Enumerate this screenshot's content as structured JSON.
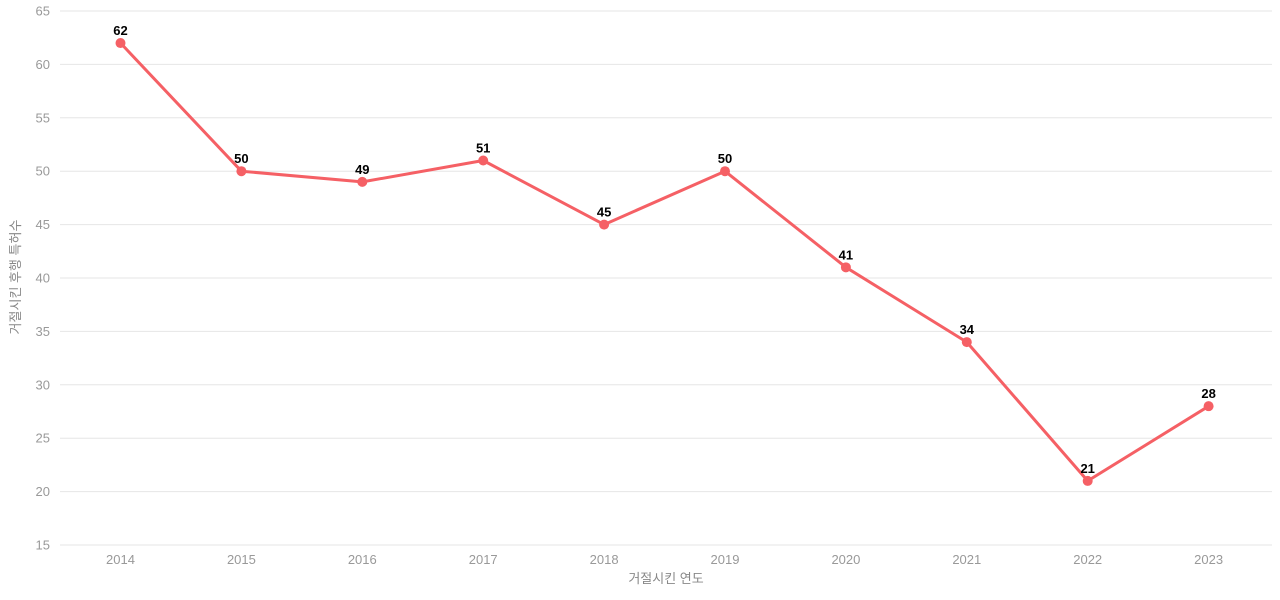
{
  "chart_data": {
    "type": "line",
    "title": "",
    "x": [
      "2014",
      "2015",
      "2016",
      "2017",
      "2018",
      "2019",
      "2020",
      "2021",
      "2022",
      "2023"
    ],
    "series": [
      {
        "name": "거절시킨 후행 특허수",
        "values": [
          62,
          50,
          49,
          51,
          45,
          50,
          41,
          34,
          21,
          28
        ]
      }
    ],
    "data_labels": [
      "62",
      "50",
      "49",
      "51",
      "45",
      "50",
      "41",
      "34",
      "21",
      "28"
    ],
    "xlabel": "거절시킨 연도",
    "ylabel": "거절시킨 후행 특허수",
    "ylim": [
      15,
      65
    ],
    "ytick_step": 5,
    "yticks": [
      15,
      20,
      25,
      30,
      35,
      40,
      45,
      50,
      55,
      60,
      65
    ],
    "grid": true,
    "legend_position": "none",
    "colors": {
      "line": "#f56065",
      "marker": "#f56065",
      "grid_line": "#e6e6e6",
      "tick_label": "#999999",
      "axis_title": "#888888",
      "data_label": "#000000",
      "background": "#ffffff"
    }
  }
}
